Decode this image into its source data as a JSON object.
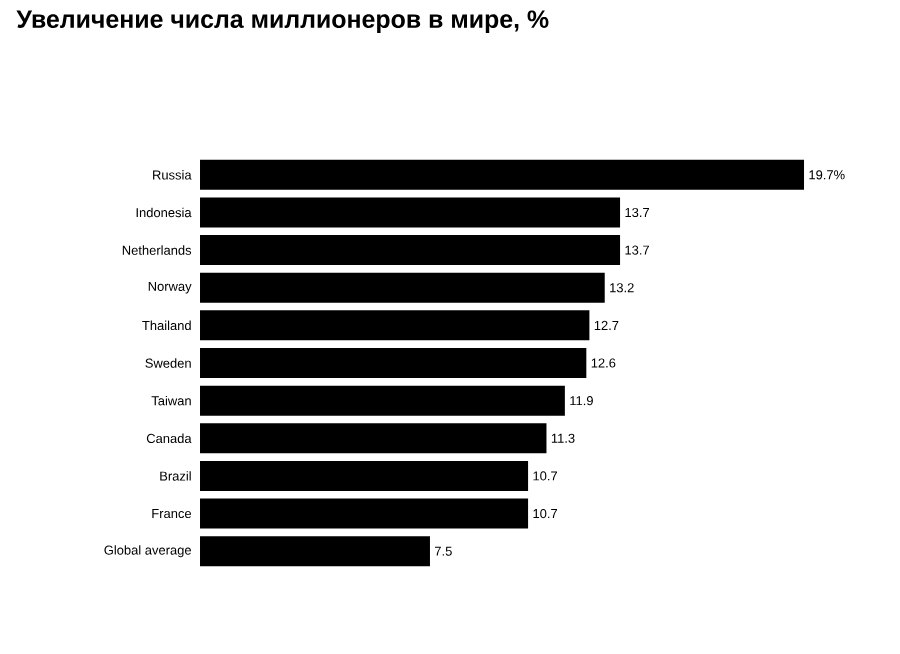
{
  "chart_data": {
    "type": "bar",
    "orientation": "horizontal",
    "title": "Увеличение числа миллионеров в мире, %",
    "categories": [
      "Russia",
      "Indonesia",
      "Netherlands",
      "Norway",
      "Thailand",
      "Sweden",
      "Taiwan",
      "Canada",
      "Brazil",
      "France",
      "Global average"
    ],
    "values": [
      19.7,
      13.7,
      13.7,
      13.2,
      12.7,
      12.6,
      11.9,
      11.3,
      10.7,
      10.7,
      7.5
    ],
    "value_labels": [
      "19.7%",
      "13.7",
      "13.7",
      "13.2",
      "12.7",
      "12.6",
      "11.9",
      "11.3",
      "10.7",
      "10.7",
      "7.5"
    ],
    "color": "#000000"
  }
}
